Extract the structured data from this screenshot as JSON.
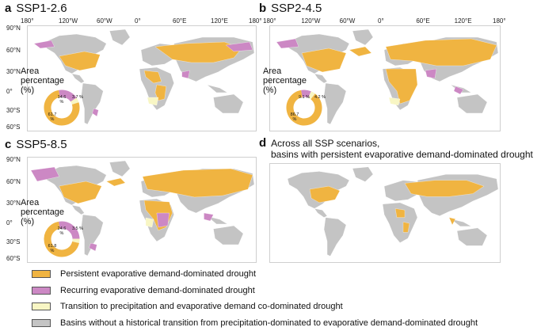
{
  "colors": {
    "persistent": "#F0B441",
    "recurring": "#CC88C4",
    "transition": "#F8F6C4",
    "none": "#C4C4C4"
  },
  "axes": {
    "lon_labels": [
      "180°",
      "120°W",
      "60°W",
      "0°",
      "60°E",
      "120°E",
      "180°"
    ],
    "lat_labels": [
      "90°N",
      "60°N",
      "30°N",
      "0°",
      "30°S",
      "60°S"
    ]
  },
  "panels": [
    {
      "letter": "a",
      "title": "SSP1-2.6",
      "area_title": "Area percentage (%)",
      "area": {
        "persistent": "61.7",
        "recurring": "14.6",
        "transition": "3.7"
      }
    },
    {
      "letter": "b",
      "title": "SSP2-4.5",
      "area_title": "Area percentage (%)",
      "area": {
        "persistent": "86.7",
        "recurring": "9.1",
        "transition": "4.2"
      }
    },
    {
      "letter": "c",
      "title": "SSP5-8.5",
      "area_title": "Area percentage (%)",
      "area": {
        "persistent": "61.8",
        "recurring": "24.6",
        "transition": "3.5"
      }
    },
    {
      "letter": "d",
      "title": "Across all SSP scenarios,",
      "subtitle": "basins with persistent evaporative demand-dominated drought"
    }
  ],
  "legend": [
    {
      "key": "persistent",
      "label": "Persistent evaporative demand-dominated drought"
    },
    {
      "key": "recurring",
      "label": "Recurring evaporative demand-dominated drought"
    },
    {
      "key": "transition",
      "label": "Transition to precipitation and evaporative demand co-dominated drought"
    },
    {
      "key": "none",
      "label": "Basins without a historical transition from precipitation-dominated to evaporative demand-dominated drought"
    }
  ]
}
